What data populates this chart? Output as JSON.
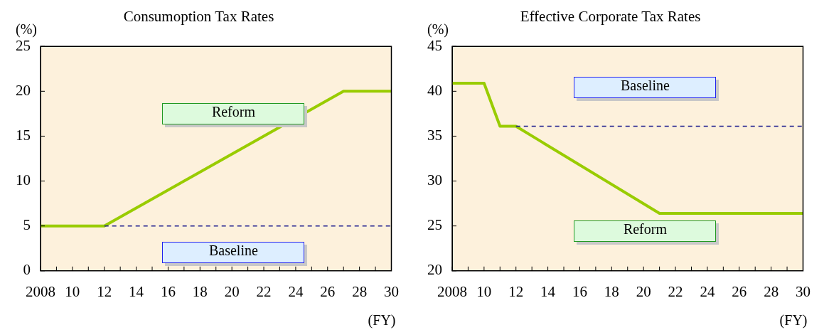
{
  "chart_data": [
    {
      "type": "line",
      "title": "Consumoption Tax Rates",
      "ylabel": "(%)",
      "xlabel": "(FY)",
      "xlim": [
        2008,
        2030
      ],
      "ylim": [
        0,
        25
      ],
      "yticks": [
        0,
        5,
        10,
        15,
        20,
        25
      ],
      "xticks": [
        2008,
        {
          "value": 2009,
          "label": null
        },
        {
          "value": 2010,
          "label": "10"
        },
        {
          "value": 2011,
          "label": null
        },
        {
          "value": 2012,
          "label": "12"
        },
        {
          "value": 2013,
          "label": null
        },
        {
          "value": 2014,
          "label": "14"
        },
        {
          "value": 2015,
          "label": null
        },
        {
          "value": 2016,
          "label": "16"
        },
        {
          "value": 2017,
          "label": null
        },
        {
          "value": 2018,
          "label": "18"
        },
        {
          "value": 2019,
          "label": null
        },
        {
          "value": 2020,
          "label": "20"
        },
        {
          "value": 2021,
          "label": null
        },
        {
          "value": 2022,
          "label": "22"
        },
        {
          "value": 2023,
          "label": null
        },
        {
          "value": 2024,
          "label": "24"
        },
        {
          "value": 2025,
          "label": null
        },
        {
          "value": 2026,
          "label": "26"
        },
        {
          "value": 2027,
          "label": null
        },
        {
          "value": 2028,
          "label": "28"
        },
        {
          "value": 2029,
          "label": null
        },
        {
          "value": 2030,
          "label": "30"
        }
      ],
      "grid": false,
      "legend": false,
      "marker": "none",
      "series": [
        {
          "name": "Reform",
          "color": "#99cc00",
          "line_style": "solid",
          "x": [
            2008,
            2012,
            2027,
            2030
          ],
          "values": [
            5,
            5,
            20,
            20
          ]
        },
        {
          "name": "Baseline",
          "color": "#1f1f8f",
          "line_style": "dashed",
          "x": [
            2012,
            2030
          ],
          "values": [
            5,
            5
          ]
        }
      ]
    },
    {
      "type": "line",
      "title": "Effective Corporate Tax Rates",
      "ylabel": "(%)",
      "xlabel": "(FY)",
      "xlim": [
        2008,
        2030
      ],
      "ylim": [
        20,
        45
      ],
      "yticks": [
        20,
        25,
        30,
        35,
        40,
        45
      ],
      "xticks": [
        2008,
        {
          "value": 2009,
          "label": null
        },
        {
          "value": 2010,
          "label": "10"
        },
        {
          "value": 2011,
          "label": null
        },
        {
          "value": 2012,
          "label": "12"
        },
        {
          "value": 2013,
          "label": null
        },
        {
          "value": 2014,
          "label": "14"
        },
        {
          "value": 2015,
          "label": null
        },
        {
          "value": 2016,
          "label": "16"
        },
        {
          "value": 2017,
          "label": null
        },
        {
          "value": 2018,
          "label": "18"
        },
        {
          "value": 2019,
          "label": null
        },
        {
          "value": 2020,
          "label": "20"
        },
        {
          "value": 2021,
          "label": null
        },
        {
          "value": 2022,
          "label": "22"
        },
        {
          "value": 2023,
          "label": null
        },
        {
          "value": 2024,
          "label": "24"
        },
        {
          "value": 2025,
          "label": null
        },
        {
          "value": 2026,
          "label": "26"
        },
        {
          "value": 2027,
          "label": null
        },
        {
          "value": 2028,
          "label": "28"
        },
        {
          "value": 2029,
          "label": null
        },
        {
          "value": 2030,
          "label": "30"
        }
      ],
      "grid": false,
      "legend": false,
      "marker": "none",
      "series": [
        {
          "name": "Reform",
          "color": "#99cc00",
          "line_style": "solid",
          "x": [
            2008,
            2010,
            2011,
            2012,
            2021,
            2030
          ],
          "values": [
            40.9,
            40.9,
            36.1,
            36.1,
            26.4,
            26.4
          ]
        },
        {
          "name": "Baseline",
          "color": "#1f1f8f",
          "line_style": "dashed",
          "x": [
            2012,
            2030
          ],
          "values": [
            36.1,
            36.1
          ]
        }
      ]
    }
  ]
}
